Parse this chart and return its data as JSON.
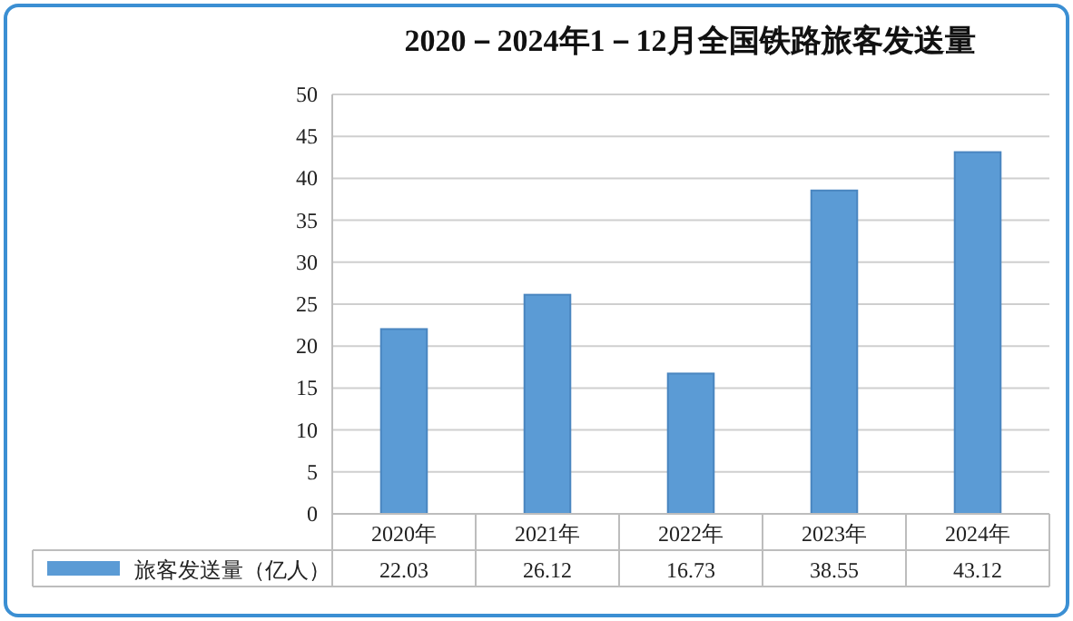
{
  "chart_data": {
    "type": "bar",
    "title": "2020－2024年1－12月全国铁路旅客发送量",
    "categories": [
      "2020年",
      "2021年",
      "2022年",
      "2023年",
      "2024年"
    ],
    "series": [
      {
        "name": "旅客发送量（亿人）",
        "color": "#5b9bd5",
        "values": [
          22.03,
          26.12,
          16.73,
          38.55,
          43.12
        ]
      }
    ],
    "ylim": [
      0,
      50
    ],
    "yticks": [
      0,
      5,
      10,
      15,
      20,
      25,
      30,
      35,
      40,
      45,
      50
    ],
    "grid": "y",
    "data_labels": true,
    "legend": "bottom"
  }
}
